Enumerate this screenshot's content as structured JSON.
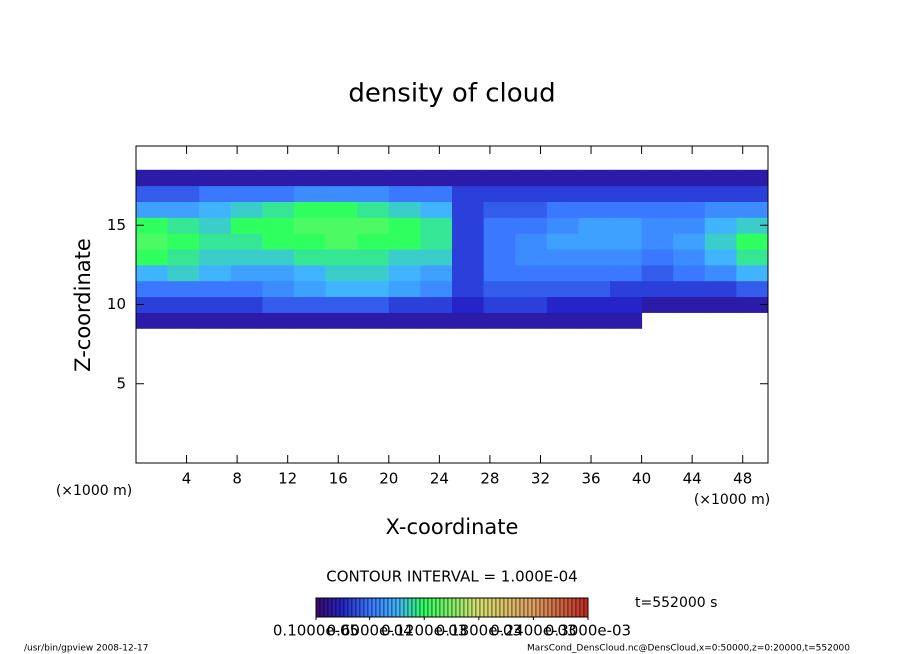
{
  "chart_data": {
    "type": "heatmap",
    "title": "density of cloud",
    "x_label": "X-coordinate",
    "y_label": "Z-coordinate",
    "x_unit": "(×1000 m)",
    "y_unit": "(×1000 m)",
    "contour_note": "CONTOUR INTERVAL = 1.000E-04",
    "time_label": "t=552000 s",
    "footer_left": "/usr/bin/gpview  2008-12-17",
    "footer_right": "MarsCond_DensCloud.nc@DensCloud,x=0:50000,z=0:20000,t=552000",
    "xlim": [
      0,
      50
    ],
    "ylim": [
      0,
      20
    ],
    "xticks": [
      4,
      8,
      12,
      16,
      20,
      24,
      28,
      32,
      36,
      40,
      44,
      48
    ],
    "yticks": [
      5,
      10,
      15
    ],
    "x": [
      1.25,
      3.75,
      6.25,
      8.75,
      11.25,
      13.75,
      16.25,
      18.75,
      21.25,
      23.75,
      26.25,
      28.75,
      31.25,
      33.75,
      36.25,
      38.75,
      41.25,
      43.75,
      46.25,
      48.75
    ],
    "z": [
      9,
      10,
      11,
      12,
      13,
      14,
      15,
      16,
      17,
      18
    ],
    "values": [
      [
        2e-05,
        2e-05,
        2e-05,
        2e-05,
        2e-05,
        2e-05,
        2e-05,
        2e-05,
        2e-05,
        2e-05,
        2e-05,
        2e-05,
        2e-05,
        2e-05,
        2e-05,
        2e-05,
        null,
        null,
        null,
        null
      ],
      [
        4e-05,
        4e-05,
        4e-05,
        4e-05,
        5e-05,
        5e-05,
        5e-05,
        5e-05,
        4e-05,
        4e-05,
        3e-05,
        4e-05,
        4e-05,
        3e-05,
        3e-05,
        3e-05,
        2e-05,
        2e-05,
        2e-05,
        2e-05
      ],
      [
        6e-05,
        6e-05,
        6e-05,
        6e-05,
        7e-05,
        8e-05,
        9e-05,
        9e-05,
        8e-05,
        7e-05,
        4e-05,
        5e-05,
        5e-05,
        5e-05,
        5e-05,
        4e-05,
        4e-05,
        4e-05,
        4e-05,
        5e-05
      ],
      [
        9e-05,
        0.0001,
        9e-05,
        8e-05,
        8e-05,
        9e-05,
        0.0001,
        0.0001,
        9e-05,
        8e-05,
        4e-05,
        6e-05,
        6e-05,
        6e-05,
        6e-05,
        6e-05,
        5e-05,
        6e-05,
        7e-05,
        9e-05
      ],
      [
        0.00012,
        0.00011,
        0.0001,
        0.0001,
        0.0001,
        0.00011,
        0.00011,
        0.00011,
        0.0001,
        0.0001,
        4e-05,
        6e-05,
        7e-05,
        7e-05,
        7e-05,
        7e-05,
        6e-05,
        7e-05,
        9e-05,
        0.00011
      ],
      [
        0.00013,
        0.00012,
        0.00011,
        0.00011,
        0.00012,
        0.00012,
        0.00013,
        0.00012,
        0.00012,
        0.00011,
        4e-05,
        6e-05,
        7e-05,
        8e-05,
        8e-05,
        8e-05,
        7e-05,
        8e-05,
        0.0001,
        0.00012
      ],
      [
        0.00012,
        0.00011,
        0.0001,
        0.00012,
        0.00012,
        0.00013,
        0.00013,
        0.00013,
        0.00012,
        0.00011,
        4e-05,
        6e-05,
        6e-05,
        7e-05,
        8e-05,
        8e-05,
        7e-05,
        7e-05,
        9e-05,
        0.0001
      ],
      [
        8e-05,
        8e-05,
        9e-05,
        0.0001,
        0.00011,
        0.00012,
        0.00012,
        0.00011,
        0.0001,
        9e-05,
        4e-05,
        5e-05,
        5e-05,
        6e-05,
        6e-05,
        6e-05,
        6e-05,
        6e-05,
        7e-05,
        7e-05
      ],
      [
        5e-05,
        5e-05,
        6e-05,
        6e-05,
        6e-05,
        7e-05,
        7e-05,
        7e-05,
        6e-05,
        6e-05,
        4e-05,
        4e-05,
        4e-05,
        4e-05,
        4e-05,
        4e-05,
        4e-05,
        4e-05,
        4e-05,
        4e-05
      ],
      [
        2e-05,
        2e-05,
        2e-05,
        2e-05,
        2e-05,
        2e-05,
        2e-05,
        2e-05,
        2e-05,
        2e-05,
        2e-05,
        2e-05,
        2e-05,
        2e-05,
        2e-05,
        2e-05,
        2e-05,
        2e-05,
        2e-05,
        2e-05
      ]
    ],
    "colorscale": [
      [
        1e-06,
        "#3a0a6e"
      ],
      [
        3e-05,
        "#2424c8"
      ],
      [
        6e-05,
        "#3a78ff"
      ],
      [
        9e-05,
        "#40b4ff"
      ],
      [
        0.00012,
        "#30ff60"
      ],
      [
        0.00018,
        "#d8e070"
      ],
      [
        0.00024,
        "#e0a060"
      ],
      [
        0.0003,
        "#c02820"
      ]
    ],
    "colorbar_ticks": [
      {
        "value": 1e-06,
        "label": "0.1000e-05"
      },
      {
        "value": 6e-05,
        "label": "0.6000e-04"
      },
      {
        "value": 0.00012,
        "label": "0.1200e-03"
      },
      {
        "value": 0.00018,
        "label": "0.1800e-03"
      },
      {
        "value": 0.00024,
        "label": "0.2400e-03"
      },
      {
        "value": 0.0003,
        "label": "0.3000e-03"
      }
    ]
  }
}
